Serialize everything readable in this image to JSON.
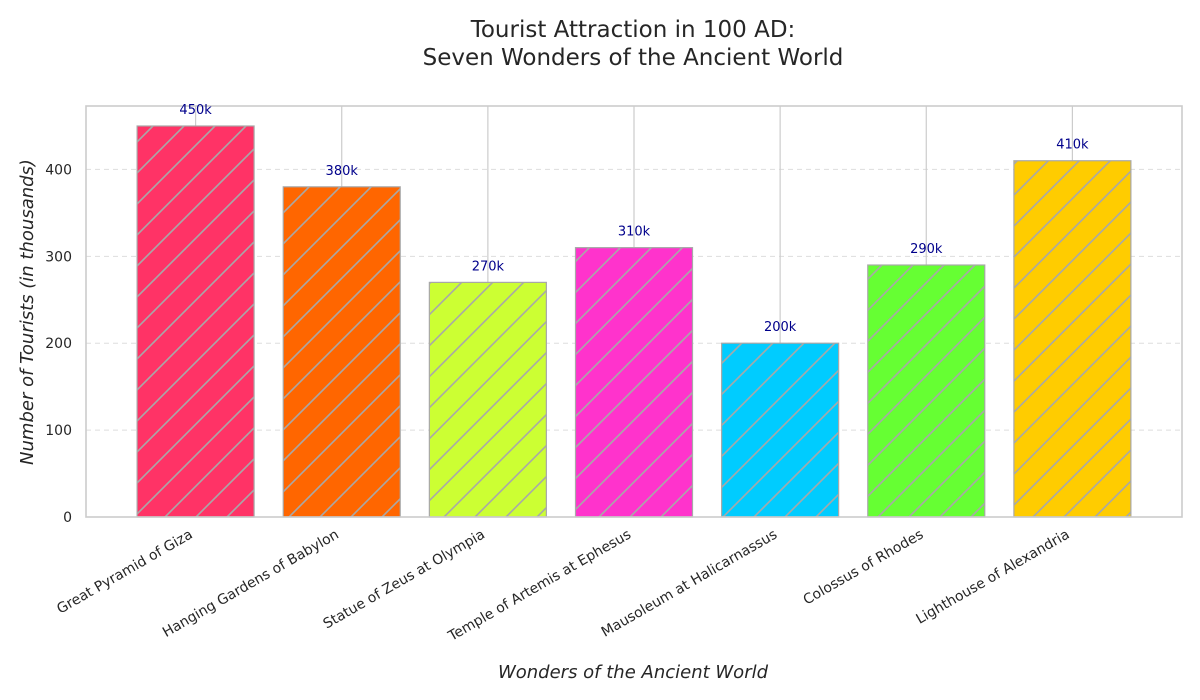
{
  "chart_data": {
    "type": "bar",
    "title": [
      "Tourist Attraction in 100 AD:",
      "Seven Wonders of the Ancient World"
    ],
    "xlabel": "Wonders of the Ancient World",
    "ylabel": "Number of Tourists (in thousands)",
    "categories": [
      "Great Pyramid of Giza",
      "Hanging Gardens of Babylon",
      "Statue of Zeus at Olympia",
      "Temple of Artemis at Ephesus",
      "Mausoleum at Halicarnassus",
      "Colossus of Rhodes",
      "Lighthouse of Alexandria"
    ],
    "values": [
      450,
      380,
      270,
      310,
      200,
      290,
      410
    ],
    "value_labels": [
      "450k",
      "380k",
      "270k",
      "310k",
      "200k",
      "290k",
      "410k"
    ],
    "colors": [
      "#ff3366",
      "#ff6600",
      "#ccff33",
      "#ff33cc",
      "#00ccff",
      "#66ff33",
      "#ffcc00"
    ],
    "ylim": [
      0,
      473
    ],
    "yticks": [
      0,
      100,
      200,
      300,
      400
    ],
    "grid": true,
    "bar_hatch": "diagonal"
  }
}
